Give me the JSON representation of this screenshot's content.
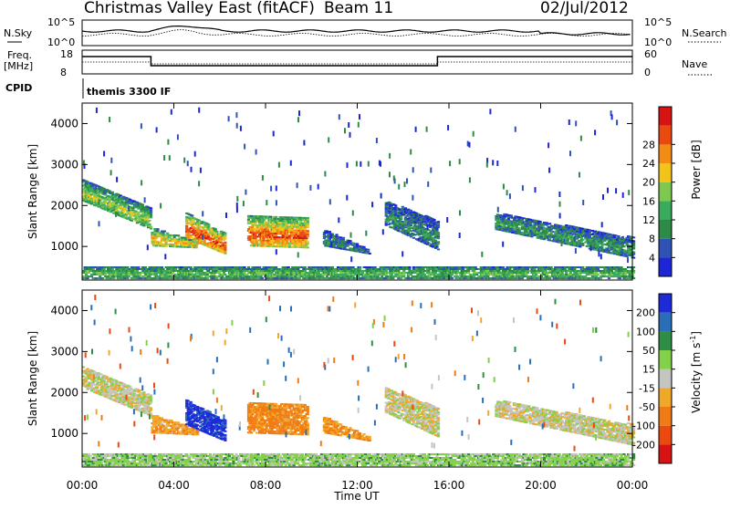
{
  "header": {
    "station": "Christmas Valley East (fitACF)",
    "beam": "Beam 11",
    "date": "02/Jul/2012"
  },
  "strip_labels": {
    "nsky": "N.Sky",
    "nsky_ticks": [
      "10^5",
      "10^0"
    ],
    "nsearch": "N.Search",
    "nsearch_ticks": [
      "10^5",
      "10^0"
    ],
    "freq": "Freq.",
    "freq_unit": "[MHz]",
    "freq_ticks": [
      "18",
      "8"
    ],
    "nave": "Nave",
    "nave_ticks": [
      "60",
      "0"
    ],
    "cpid": "CPID",
    "cpid_value": "themis 3300 IF"
  },
  "chart_data": [
    {
      "type": "heatmap",
      "parameter": "Power",
      "ylabel": "Slant Range [km]",
      "ylim": [
        180,
        4500
      ],
      "yticks": [
        "1000",
        "2000",
        "3000",
        "4000"
      ],
      "xlim_hours": [
        0,
        24
      ],
      "xticks": [
        "00:00",
        "04:00",
        "08:00",
        "12:00",
        "16:00",
        "20:00",
        "00:00"
      ],
      "colorbar": {
        "label": "Power [dB]",
        "ticks": [
          "4",
          "8",
          "12",
          "16",
          "20",
          "24",
          "28"
        ],
        "colors": [
          "#1c26d6",
          "#2f53b4",
          "#2d8a49",
          "#3aab5c",
          "#7fc850",
          "#f2c419",
          "#f28c12",
          "#ea4a10",
          "#d61414"
        ]
      },
      "echo_regions": [
        {
          "t": [
            0.0,
            3.0
          ],
          "r_start": [
            2600,
            1900
          ],
          "r_end": [
            2100,
            1400
          ],
          "level": 0.55
        },
        {
          "t": [
            3.0,
            5.0
          ],
          "r_start": [
            1450,
            1100
          ],
          "r_end": [
            1000,
            950
          ],
          "level": 0.7
        },
        {
          "t": [
            4.5,
            6.2
          ],
          "r_start": [
            1800,
            1300
          ],
          "r_end": [
            1200,
            800
          ],
          "level": 0.9
        },
        {
          "t": [
            7.2,
            9.8
          ],
          "r_start": [
            1750,
            1700
          ],
          "r_end": [
            1000,
            950
          ],
          "level": 0.85
        },
        {
          "t": [
            10.5,
            12.5
          ],
          "r_start": [
            1400,
            900
          ],
          "r_end": [
            1000,
            800
          ],
          "level": 0.3
        },
        {
          "t": [
            13.2,
            15.5
          ],
          "r_start": [
            2100,
            1600
          ],
          "r_end": [
            1500,
            900
          ],
          "level": 0.3
        },
        {
          "t": [
            18.0,
            24.0
          ],
          "r_start": [
            1800,
            1200
          ],
          "r_end": [
            1400,
            700
          ],
          "level": 0.35
        },
        {
          "t": [
            0.0,
            24.0
          ],
          "r_start": [
            500,
            500
          ],
          "r_end": [
            200,
            200
          ],
          "level": 0.45
        }
      ]
    },
    {
      "type": "heatmap",
      "parameter": "Velocity",
      "ylabel": "Slant Range [km]",
      "ylim": [
        180,
        4500
      ],
      "yticks": [
        "1000",
        "2000",
        "3000",
        "4000"
      ],
      "xlim_hours": [
        0,
        24
      ],
      "xticks": [
        "00:00",
        "04:00",
        "08:00",
        "12:00",
        "16:00",
        "20:00",
        "00:00"
      ],
      "xlabel": "Time UT",
      "colorbar": {
        "label": "Velocity [m s^-1]",
        "ticks": [
          "200",
          "100",
          "50",
          "15",
          "-15",
          "-50",
          "-100",
          "-200"
        ],
        "colors": [
          "#1c2ad8",
          "#2a6eb8",
          "#2e8e46",
          "#84d04a",
          "#c4c4c0",
          "#f0a828",
          "#f07a14",
          "#ea4a10",
          "#d61414"
        ]
      },
      "echo_regions": [
        {
          "t": [
            0.0,
            3.0
          ],
          "r_start": [
            2600,
            1900
          ],
          "r_end": [
            2100,
            1400
          ],
          "velocity": 0
        },
        {
          "t": [
            3.0,
            5.0
          ],
          "r_start": [
            1450,
            1100
          ],
          "r_end": [
            1000,
            950
          ],
          "velocity": -40
        },
        {
          "t": [
            4.5,
            6.2
          ],
          "r_start": [
            1800,
            1300
          ],
          "r_end": [
            1200,
            800
          ],
          "velocity": 220
        },
        {
          "t": [
            7.2,
            9.8
          ],
          "r_start": [
            1750,
            1700
          ],
          "r_end": [
            1000,
            950
          ],
          "velocity": -60
        },
        {
          "t": [
            10.5,
            12.5
          ],
          "r_start": [
            1400,
            900
          ],
          "r_end": [
            1000,
            800
          ],
          "velocity": -50
        },
        {
          "t": [
            13.2,
            15.5
          ],
          "r_start": [
            2100,
            1600
          ],
          "r_end": [
            1500,
            900
          ],
          "velocity": 0
        },
        {
          "t": [
            18.0,
            24.0
          ],
          "r_start": [
            1800,
            1200
          ],
          "r_end": [
            1400,
            700
          ],
          "velocity": 0
        },
        {
          "t": [
            0.0,
            24.0
          ],
          "r_start": [
            500,
            500
          ],
          "r_end": [
            200,
            200
          ],
          "velocity": 30
        }
      ]
    }
  ]
}
